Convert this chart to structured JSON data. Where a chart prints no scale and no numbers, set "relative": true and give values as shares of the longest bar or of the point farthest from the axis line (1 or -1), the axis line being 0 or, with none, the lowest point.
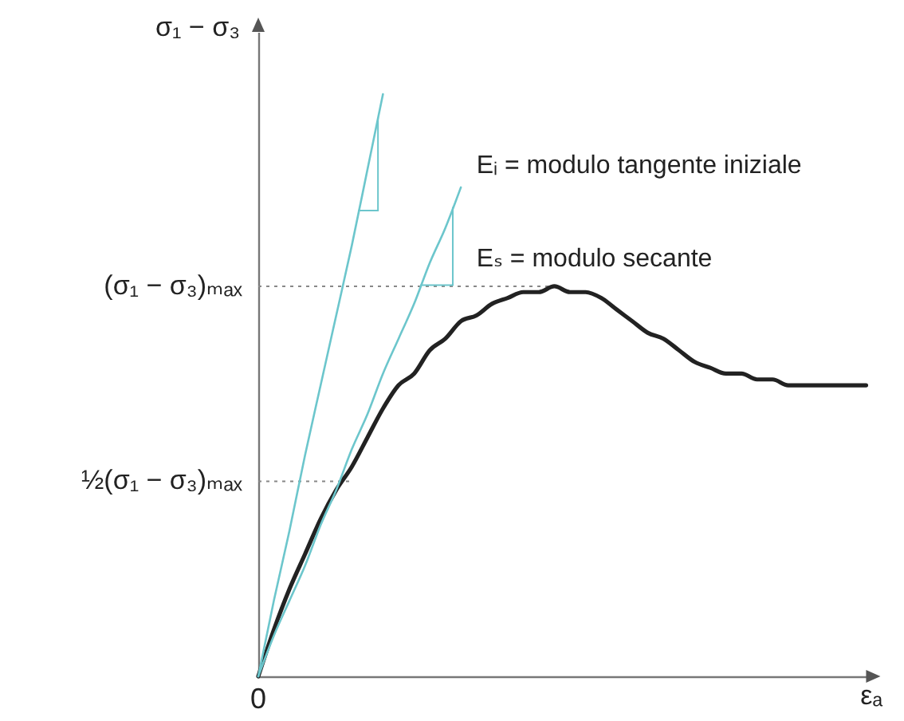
{
  "chart_data": {
    "type": "line",
    "xlabel": "εₐ",
    "ylabel": "σ₁ − σ₃",
    "categories": [
      null,
      null,
      null,
      null,
      null,
      null,
      null,
      null,
      null,
      null,
      null,
      null,
      null,
      null,
      null,
      null,
      null,
      null,
      null,
      null,
      null,
      null,
      null,
      null,
      null,
      null,
      null,
      null,
      null,
      null,
      null,
      null,
      null,
      null,
      null,
      null,
      null,
      null,
      null,
      null
    ],
    "relative": true,
    "series": [
      {
        "color": "#222222",
        "values": [
          0,
          0.08,
          0.15,
          0.21,
          0.27,
          0.32,
          0.36,
          0.41,
          0.46,
          0.5,
          0.52,
          0.56,
          0.58,
          0.61,
          0.62,
          0.64,
          0.65,
          0.66,
          0.66,
          0.67,
          0.66,
          0.66,
          0.65,
          0.63,
          0.61,
          0.59,
          0.58,
          0.56,
          0.54,
          0.53,
          0.52,
          0.52,
          0.51,
          0.51,
          0.5,
          0.5,
          0.5,
          0.5,
          0.5,
          0.5
        ]
      },
      {
        "type": "line",
        "color": "#6cc6cc",
        "values": [
          0,
          0.13,
          0.25,
          0.38,
          0.5,
          0.62,
          0.74,
          0.87,
          1,
          null,
          null,
          null,
          null,
          null,
          null,
          null,
          null,
          null,
          null,
          null,
          null,
          null,
          null,
          null,
          null,
          null,
          null,
          null,
          null,
          null,
          null,
          null,
          null,
          null,
          null,
          null,
          null,
          null,
          null,
          null
        ]
      },
      {
        "type": "line",
        "color": "#6cc6cc",
        "values": [
          0,
          0.07,
          0.13,
          0.19,
          0.26,
          0.32,
          0.39,
          0.45,
          0.52,
          0.58,
          0.64,
          0.71,
          0.77,
          0.84,
          null,
          null,
          null,
          null,
          null,
          null,
          null,
          null,
          null,
          null,
          null,
          null,
          null,
          null,
          null,
          null,
          null,
          null,
          null,
          null,
          null,
          null,
          null,
          null,
          null,
          null
        ]
      }
    ],
    "ref_lines": [
      {
        "axis": "y",
        "value": 0.67,
        "label": "(σ₁ − σ₃)ₘₐₓ",
        "line_style": "dotted",
        "color": "#888888"
      },
      {
        "axis": "y",
        "value": 0.335,
        "label": "½(σ₁ − σ₃)ₘₐₓ",
        "line_style": "dotted",
        "color": "#888888"
      }
    ],
    "annotations": [
      "Eᵢ = modulo tangente iniziale",
      "Eₛ = modulo secante",
      {
        "text": "0",
        "y": 0
      }
    ]
  }
}
